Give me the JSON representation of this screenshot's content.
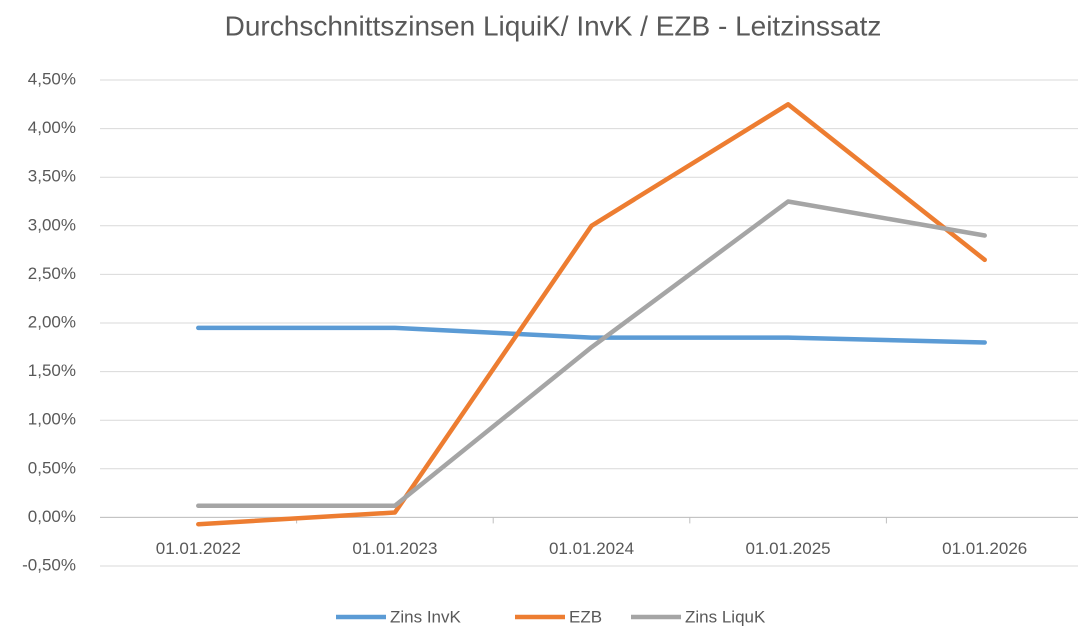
{
  "chart_data": {
    "type": "line",
    "title": "Durchschnittszinsen LiquiK/ InvK / EZB - Leitzinssatz",
    "categories": [
      "01.01.2022",
      "01.01.2023",
      "01.01.2024",
      "01.01.2025",
      "01.01.2026"
    ],
    "series": [
      {
        "name": "Zins InvK",
        "color": "#5b9bd5",
        "values": [
          1.95,
          1.95,
          1.85,
          1.85,
          1.8
        ]
      },
      {
        "name": "EZB",
        "color": "#ed7d31",
        "values": [
          -0.07,
          0.05,
          3.0,
          4.25,
          2.65
        ]
      },
      {
        "name": "Zins LiquK",
        "color": "#a5a5a5",
        "values": [
          0.12,
          0.12,
          1.75,
          3.25,
          2.9
        ]
      }
    ],
    "ylim": [
      -0.5,
      4.5
    ],
    "yticks": [
      {
        "value": -0.5,
        "label": "-0,50%"
      },
      {
        "value": 0,
        "label": "0,00%"
      },
      {
        "value": 0.5,
        "label": "0,50%"
      },
      {
        "value": 1,
        "label": "1,00%"
      },
      {
        "value": 1.5,
        "label": "1,50%"
      },
      {
        "value": 2,
        "label": "2,00%"
      },
      {
        "value": 2.5,
        "label": "2,50%"
      },
      {
        "value": 3,
        "label": "3,00%"
      },
      {
        "value": 3.5,
        "label": "3,50%"
      },
      {
        "value": 4,
        "label": "4,00%"
      },
      {
        "value": 4.5,
        "label": "4,50%"
      }
    ],
    "grid": true,
    "legend": "bottom"
  }
}
